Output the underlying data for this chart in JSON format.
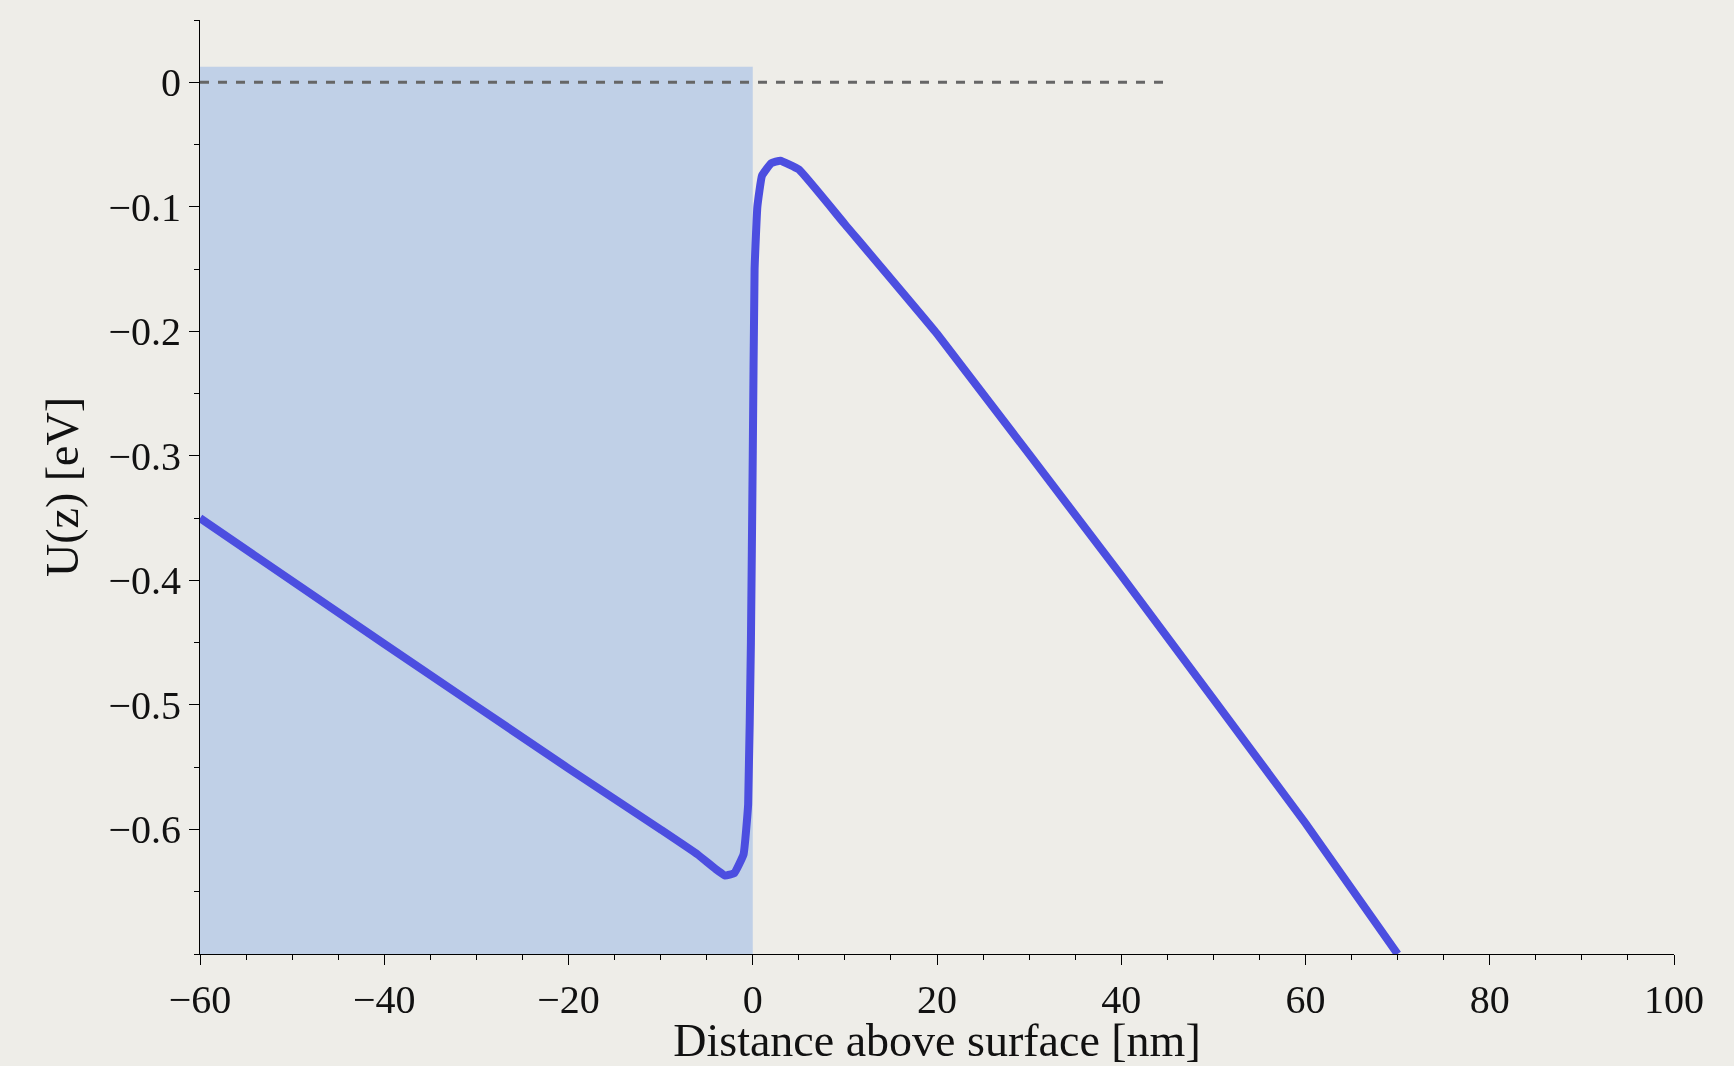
{
  "chart_data": {
    "type": "line",
    "xlabel": "Distance above surface [nm]",
    "ylabel": "U(z) [eV]",
    "xlim": [
      -60,
      100
    ],
    "xticks": [
      {
        "value": -60,
        "label": "−60"
      },
      {
        "value": -40,
        "label": "−40"
      },
      {
        "value": -20,
        "label": "−20"
      },
      0,
      20,
      40,
      60,
      80,
      100
    ],
    "ylim": [
      -0.7,
      0.05
    ],
    "yticks": [
      0,
      {
        "value": -0.1,
        "label": "−0.1"
      },
      {
        "value": -0.2,
        "label": "−0.2"
      },
      {
        "value": -0.3,
        "label": "−0.3"
      },
      {
        "value": -0.4,
        "label": "−0.4"
      },
      {
        "value": -0.5,
        "label": "−0.5"
      },
      {
        "value": -0.6,
        "label": "−0.6"
      }
    ],
    "grid": false,
    "bands": [
      {
        "axis": "x",
        "from": -60,
        "to": 0,
        "color": "#b4c8e6"
      }
    ],
    "series": [
      {
        "color": "#4c4ee0",
        "line_style": "solid",
        "x": [
          -60,
          -40,
          -20,
          -10,
          -6,
          -4,
          -3,
          -2,
          -1,
          -0.5,
          -0.2,
          0,
          0.2,
          0.5,
          1,
          2,
          3,
          5,
          10,
          20,
          40,
          60,
          70
        ],
        "values": [
          -0.35,
          -0.451,
          -0.551,
          -0.6,
          -0.62,
          -0.632,
          -0.637,
          -0.635,
          -0.62,
          -0.58,
          -0.45,
          -0.3,
          -0.15,
          -0.1,
          -0.075,
          -0.065,
          -0.063,
          -0.07,
          -0.114,
          -0.202,
          -0.396,
          -0.595,
          -0.7
        ]
      },
      {
        "color": "#666666",
        "line_style": "dashed",
        "x": [
          -60,
          45
        ],
        "values": [
          0,
          0
        ]
      }
    ]
  }
}
